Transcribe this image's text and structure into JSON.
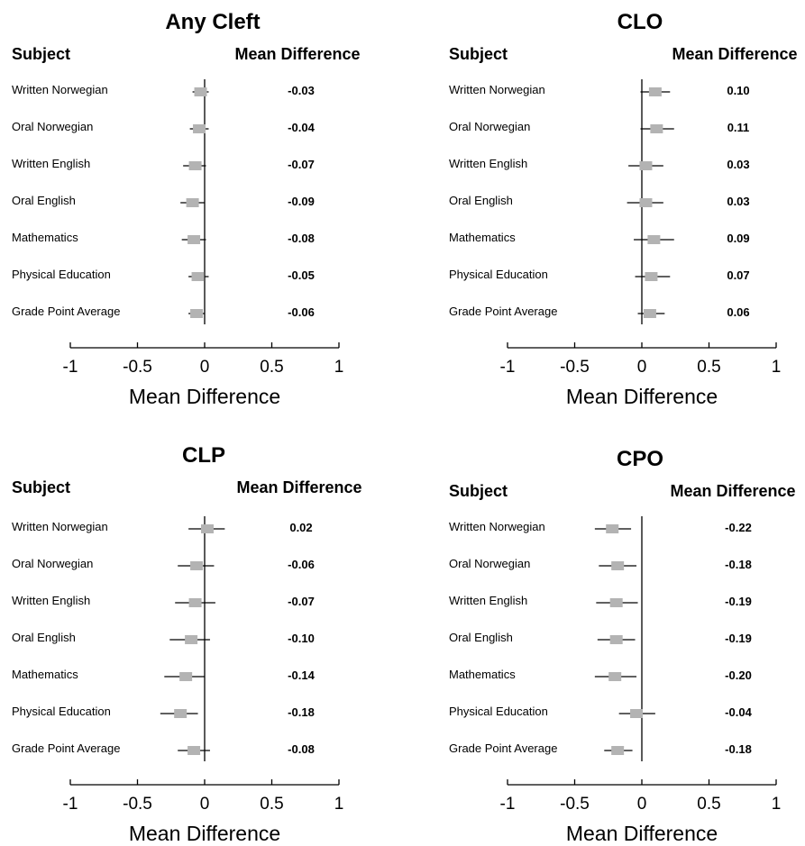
{
  "column_headers": {
    "subject": "Subject",
    "mean_difference": "Mean Difference"
  },
  "styles": {
    "marker_color": "#b3b3b3",
    "line_color": "#000000"
  },
  "chart_data": [
    {
      "type": "forest",
      "title": "Any Cleft",
      "xlabel": "Mean Difference",
      "xlim": [
        -1,
        1
      ],
      "xticks": [
        "-1",
        "-0.5",
        "0",
        "0.5",
        "1"
      ],
      "reference_line": 0,
      "rows": [
        {
          "subject": "Written Norwegian",
          "estimate": -0.03,
          "ci": [
            -0.09,
            0.03
          ],
          "label": "-0.03"
        },
        {
          "subject": "Oral Norwegian",
          "estimate": -0.04,
          "ci": [
            -0.11,
            0.03
          ],
          "label": "-0.04"
        },
        {
          "subject": "Written English",
          "estimate": -0.07,
          "ci": [
            -0.16,
            0.01
          ],
          "label": "-0.07"
        },
        {
          "subject": "Oral English",
          "estimate": -0.09,
          "ci": [
            -0.18,
            0.0
          ],
          "label": "-0.09"
        },
        {
          "subject": "Mathematics",
          "estimate": -0.08,
          "ci": [
            -0.17,
            0.01
          ],
          "label": "-0.08"
        },
        {
          "subject": "Physical Education",
          "estimate": -0.05,
          "ci": [
            -0.12,
            0.03
          ],
          "label": "-0.05"
        },
        {
          "subject": "Grade Point Average",
          "estimate": -0.06,
          "ci": [
            -0.12,
            0.0
          ],
          "label": "-0.06"
        }
      ]
    },
    {
      "type": "forest",
      "title": "CLO",
      "xlabel": "Mean Difference",
      "xlim": [
        -1,
        1
      ],
      "xticks": [
        "-1",
        "-0.5",
        "0",
        "0.5",
        "1"
      ],
      "reference_line": 0,
      "rows": [
        {
          "subject": "Written Norwegian",
          "estimate": 0.1,
          "ci": [
            -0.01,
            0.21
          ],
          "label": "0.10"
        },
        {
          "subject": "Oral Norwegian",
          "estimate": 0.11,
          "ci": [
            -0.01,
            0.24
          ],
          "label": "0.11"
        },
        {
          "subject": "Written English",
          "estimate": 0.03,
          "ci": [
            -0.1,
            0.16
          ],
          "label": "0.03"
        },
        {
          "subject": "Oral English",
          "estimate": 0.03,
          "ci": [
            -0.11,
            0.16
          ],
          "label": "0.03"
        },
        {
          "subject": "Mathematics",
          "estimate": 0.09,
          "ci": [
            -0.06,
            0.24
          ],
          "label": "0.09"
        },
        {
          "subject": "Physical Education",
          "estimate": 0.07,
          "ci": [
            -0.05,
            0.21
          ],
          "label": "0.07"
        },
        {
          "subject": "Grade Point Average",
          "estimate": 0.06,
          "ci": [
            -0.03,
            0.17
          ],
          "label": "0.06"
        }
      ]
    },
    {
      "type": "forest",
      "title": "CLP",
      "xlabel": "Mean Difference",
      "xlim": [
        -1,
        1
      ],
      "xticks": [
        "-1",
        "-0.5",
        "0",
        "0.5",
        "1"
      ],
      "reference_line": 0,
      "rows": [
        {
          "subject": "Written Norwegian",
          "estimate": 0.02,
          "ci": [
            -0.12,
            0.15
          ],
          "label": "0.02"
        },
        {
          "subject": "Oral Norwegian",
          "estimate": -0.06,
          "ci": [
            -0.2,
            0.07
          ],
          "label": "-0.06"
        },
        {
          "subject": "Written English",
          "estimate": -0.07,
          "ci": [
            -0.22,
            0.08
          ],
          "label": "-0.07"
        },
        {
          "subject": "Oral English",
          "estimate": -0.1,
          "ci": [
            -0.26,
            0.04
          ],
          "label": "-0.10"
        },
        {
          "subject": "Mathematics",
          "estimate": -0.14,
          "ci": [
            -0.3,
            0.0
          ],
          "label": "-0.14"
        },
        {
          "subject": "Physical Education",
          "estimate": -0.18,
          "ci": [
            -0.33,
            -0.05
          ],
          "label": "-0.18"
        },
        {
          "subject": "Grade Point Average",
          "estimate": -0.08,
          "ci": [
            -0.2,
            0.04
          ],
          "label": "-0.08"
        }
      ]
    },
    {
      "type": "forest",
      "title": "CPO",
      "xlabel": "Mean Difference",
      "xlim": [
        -1,
        1
      ],
      "xticks": [
        "-1",
        "-0.5",
        "0",
        "0.5",
        "1"
      ],
      "reference_line": 0,
      "rows": [
        {
          "subject": "Written Norwegian",
          "estimate": -0.22,
          "ci": [
            -0.35,
            -0.08
          ],
          "label": "-0.22"
        },
        {
          "subject": "Oral Norwegian",
          "estimate": -0.18,
          "ci": [
            -0.32,
            -0.04
          ],
          "label": "-0.18"
        },
        {
          "subject": "Written English",
          "estimate": -0.19,
          "ci": [
            -0.34,
            -0.03
          ],
          "label": "-0.19"
        },
        {
          "subject": "Oral English",
          "estimate": -0.19,
          "ci": [
            -0.33,
            -0.05
          ],
          "label": "-0.19"
        },
        {
          "subject": "Mathematics",
          "estimate": -0.2,
          "ci": [
            -0.35,
            -0.04
          ],
          "label": "-0.20"
        },
        {
          "subject": "Physical Education",
          "estimate": -0.04,
          "ci": [
            -0.17,
            0.1
          ],
          "label": "-0.04"
        },
        {
          "subject": "Grade Point Average",
          "estimate": -0.18,
          "ci": [
            -0.28,
            -0.07
          ],
          "label": "-0.18"
        }
      ]
    }
  ]
}
